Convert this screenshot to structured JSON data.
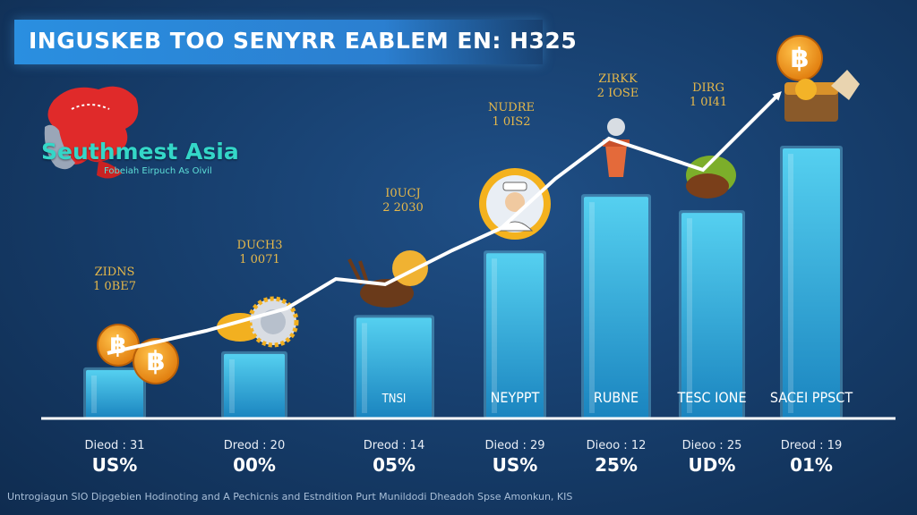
{
  "banner": {
    "title": "INGUSKEB TOO SENYRR EABLEM EN: H325"
  },
  "region": {
    "name": "Seuthmest Asia",
    "subtitle": "Fobeiah Eirpuch As Oivil"
  },
  "footer": {
    "note": "Untrogiagun SIO Dipgebien Hodinoting and A Pechicnis and Estndition Purt Munildodi Dheadoh Spse Amonkun, KIS"
  },
  "colors": {
    "bar_top": "#45c8ec",
    "bar_bottom": "#1e8ec4",
    "line": "#ffffff",
    "bitcoin": "#f7931a",
    "text_label": "#e6b84a"
  },
  "chart_data": {
    "type": "bar",
    "categories": [
      "Dieod : 31",
      "Dreod : 20",
      "Dreod : 14",
      "Dieod : 29",
      "Dieoo : 12",
      "Dieoo : 25",
      "Dreod : 19"
    ],
    "values": [
      12,
      16,
      25,
      41,
      55,
      51,
      67
    ],
    "percent_labels": [
      "US%",
      "00%",
      "05%",
      "US%",
      "25%",
      "UD%",
      "01%"
    ],
    "bar_labels": [
      "",
      "",
      "TNSI",
      "NEYPPT",
      "RUBNE",
      "TESC IONE",
      "SACEI PPSCT"
    ],
    "top_labels": [
      [
        "ZIDNS",
        "1 0BE7"
      ],
      [
        "DUCH3",
        "1 0071"
      ],
      [
        "I0UCJ",
        "2 2030"
      ],
      [
        "NUDRE",
        "1 0IS2"
      ],
      [
        "ZIRKK",
        "2 IOSE"
      ],
      [
        "DIRG",
        "1 0I41"
      ],
      [
        "",
        ""
      ]
    ],
    "trend": "up",
    "ylim": [
      0,
      75
    ],
    "grid": false,
    "legend": "none"
  }
}
